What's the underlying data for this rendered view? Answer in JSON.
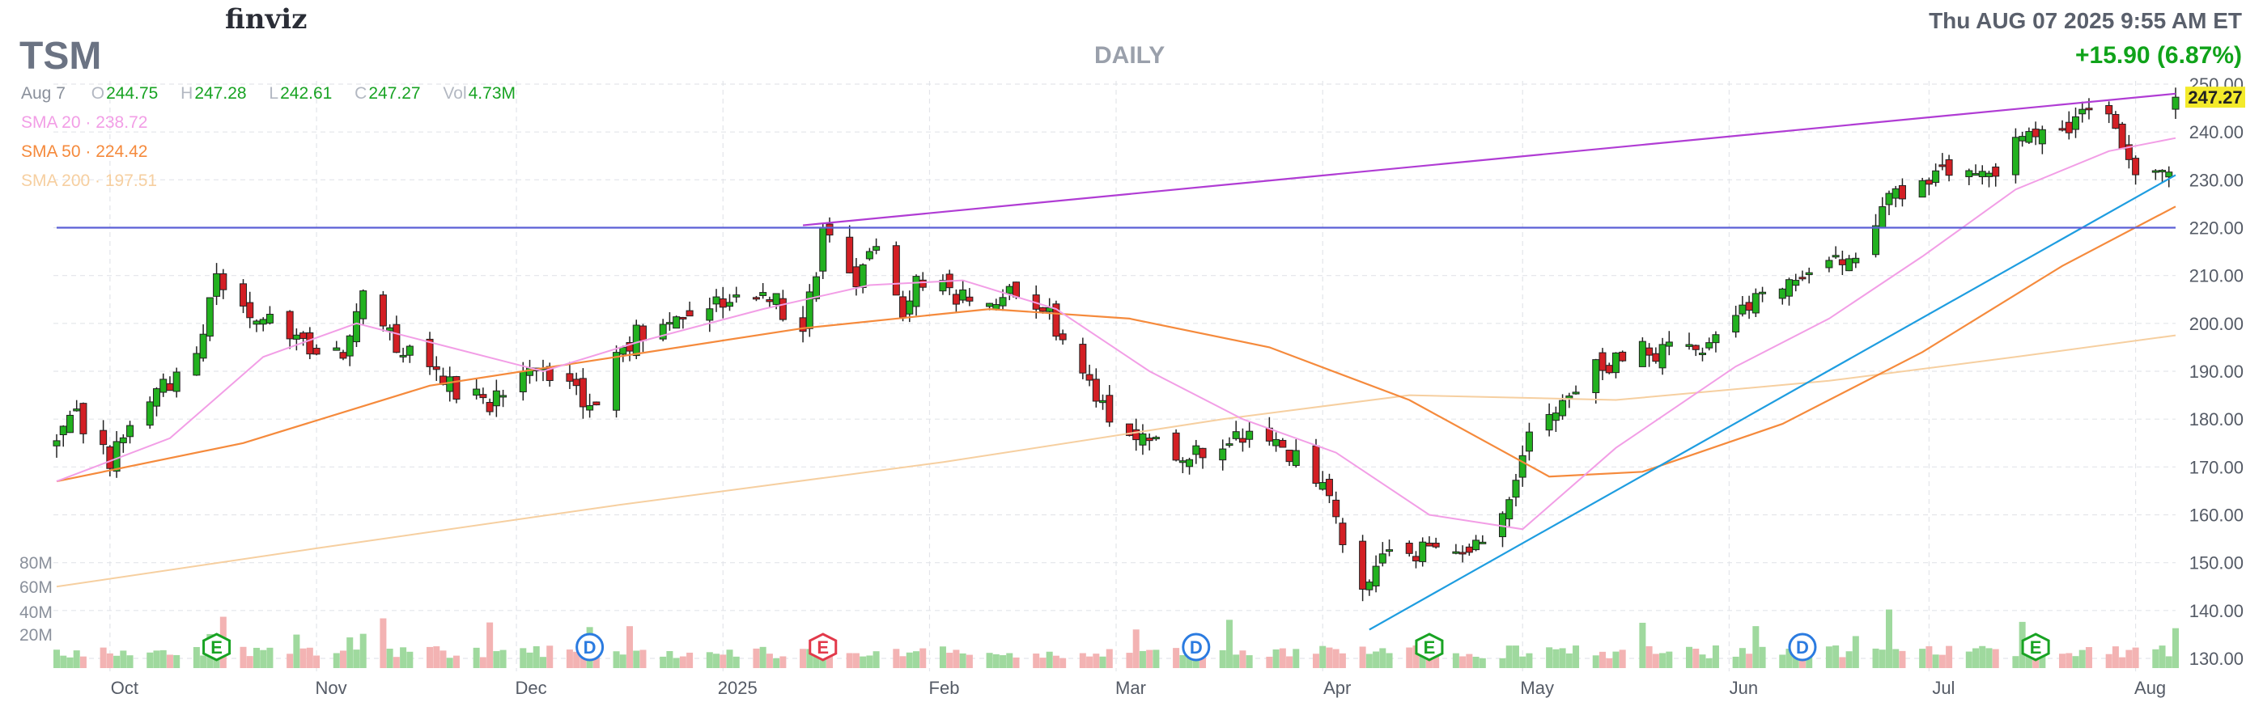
{
  "header": {
    "logo": "finviz",
    "ticker": "TSM",
    "period": "DAILY",
    "datetime": "Thu AUG 07 2025 9:55 AM ET",
    "change": "+15.90 (6.87%)",
    "quote_date": "Aug 7",
    "open_label": "O",
    "open": "244.75",
    "high_label": "H",
    "high": "247.28",
    "low_label": "L",
    "low": "242.61",
    "close_label": "C",
    "close": "247.27",
    "volume_label": "Vol",
    "volume": "4.73M",
    "sma20": "SMA 20 · 238.72",
    "sma50": "SMA 50 · 224.42",
    "sma200": "SMA 200 · 197.51"
  },
  "colors": {
    "up": "#22b11f",
    "down": "#d31f24",
    "vol_up": "#9fd99e",
    "vol_down": "#f3b3b3",
    "sma20": "#f29ee6",
    "sma50": "#f58a3c",
    "sma200": "#f6cfa0",
    "trend_top": "#b03cd4",
    "trend_up": "#1e9de0",
    "support": "#5b5fd6",
    "last_price_bg": "#f3ea2b",
    "earnings": "#18a323",
    "earnings_red": "#e2394a",
    "dividend": "#2b7be0"
  },
  "chart_data": {
    "type": "candlestick",
    "last_price": "247.27",
    "y_axis": {
      "min": 130,
      "max": 250,
      "ticks": [
        "130.00",
        "140.00",
        "150.00",
        "160.00",
        "170.00",
        "180.00",
        "190.00",
        "200.00",
        "210.00",
        "220.00",
        "230.00",
        "240.00",
        "250.00"
      ]
    },
    "volume_axis": {
      "ticks": [
        "20M",
        "40M",
        "60M",
        "80M"
      ]
    },
    "x_axis": {
      "start": "2024-09-23",
      "end": "2025-08-07",
      "labels": [
        {
          "date": "2024-10-01",
          "label": "Oct"
        },
        {
          "date": "2024-11-01",
          "label": "Nov"
        },
        {
          "date": "2024-12-01",
          "label": "Dec"
        },
        {
          "date": "2025-01-01",
          "label": "2025"
        },
        {
          "date": "2025-02-01",
          "label": "Feb"
        },
        {
          "date": "2025-03-01",
          "label": "Mar"
        },
        {
          "date": "2025-04-01",
          "label": "Apr"
        },
        {
          "date": "2025-05-01",
          "label": "May"
        },
        {
          "date": "2025-06-01",
          "label": "Jun"
        },
        {
          "date": "2025-07-01",
          "label": "Jul"
        },
        {
          "date": "2025-08-01",
          "label": "Aug"
        }
      ]
    },
    "close_path": [
      [
        "2024-09-23",
        175
      ],
      [
        "2024-09-26",
        180
      ],
      [
        "2024-10-01",
        172
      ],
      [
        "2024-10-08",
        185
      ],
      [
        "2024-10-14",
        192
      ],
      [
        "2024-10-17",
        210
      ],
      [
        "2024-10-22",
        202
      ],
      [
        "2024-10-29",
        197
      ],
      [
        "2024-11-05",
        193
      ],
      [
        "2024-11-08",
        209
      ],
      [
        "2024-11-13",
        196
      ],
      [
        "2024-11-20",
        187
      ],
      [
        "2024-11-27",
        184
      ],
      [
        "2024-12-03",
        193
      ],
      [
        "2024-12-09",
        187
      ],
      [
        "2024-12-12",
        182
      ],
      [
        "2024-12-17",
        195
      ],
      [
        "2024-12-23",
        202
      ],
      [
        "2024-12-31",
        205
      ],
      [
        "2025-01-07",
        206
      ],
      [
        "2025-01-10",
        203
      ],
      [
        "2025-01-13",
        200
      ],
      [
        "2025-01-16",
        218
      ],
      [
        "2025-01-21",
        210
      ],
      [
        "2025-01-24",
        215
      ],
      [
        "2025-01-28",
        203
      ],
      [
        "2025-01-31",
        210
      ],
      [
        "2025-02-07",
        204
      ],
      [
        "2025-02-12",
        206
      ],
      [
        "2025-02-19",
        202
      ],
      [
        "2025-02-26",
        185
      ],
      [
        "2025-03-04",
        175
      ],
      [
        "2025-03-10",
        173
      ],
      [
        "2025-03-17",
        175
      ],
      [
        "2025-03-24",
        177
      ],
      [
        "2025-03-28",
        172
      ],
      [
        "2025-04-02",
        163
      ],
      [
        "2025-04-07",
        143
      ],
      [
        "2025-04-10",
        152
      ],
      [
        "2025-04-16",
        152
      ],
      [
        "2025-04-22",
        150
      ],
      [
        "2025-04-28",
        162
      ],
      [
        "2025-05-02",
        176
      ],
      [
        "2025-05-12",
        190
      ],
      [
        "2025-05-19",
        194
      ],
      [
        "2025-05-28",
        196
      ],
      [
        "2025-06-04",
        205
      ],
      [
        "2025-06-10",
        210
      ],
      [
        "2025-06-16",
        212
      ],
      [
        "2025-06-20",
        212
      ],
      [
        "2025-06-25",
        226
      ],
      [
        "2025-07-02",
        230
      ],
      [
        "2025-07-07",
        233
      ],
      [
        "2025-07-10",
        232
      ],
      [
        "2025-07-17",
        240
      ],
      [
        "2025-07-22",
        242
      ],
      [
        "2025-07-28",
        243
      ],
      [
        "2025-08-01",
        232
      ],
      [
        "2025-08-06",
        231
      ],
      [
        "2025-08-07",
        247.27
      ]
    ],
    "sma20_path": [
      [
        "2024-09-23",
        167
      ],
      [
        "2024-10-10",
        176
      ],
      [
        "2024-10-24",
        193
      ],
      [
        "2024-11-07",
        200
      ],
      [
        "2024-11-21",
        195
      ],
      [
        "2024-12-05",
        190
      ],
      [
        "2024-12-19",
        196
      ],
      [
        "2025-01-07",
        203
      ],
      [
        "2025-01-23",
        208
      ],
      [
        "2025-02-06",
        209
      ],
      [
        "2025-02-20",
        203
      ],
      [
        "2025-03-06",
        190
      ],
      [
        "2025-03-20",
        180
      ],
      [
        "2025-04-03",
        173
      ],
      [
        "2025-04-17",
        160
      ],
      [
        "2025-05-01",
        157
      ],
      [
        "2025-05-15",
        174
      ],
      [
        "2025-06-02",
        191
      ],
      [
        "2025-06-16",
        201
      ],
      [
        "2025-06-30",
        214
      ],
      [
        "2025-07-14",
        228
      ],
      [
        "2025-07-28",
        236
      ],
      [
        "2025-08-07",
        238.72
      ]
    ],
    "sma50_path": [
      [
        "2024-09-23",
        167
      ],
      [
        "2024-10-21",
        175
      ],
      [
        "2024-11-18",
        187
      ],
      [
        "2024-12-16",
        193
      ],
      [
        "2025-01-13",
        199
      ],
      [
        "2025-02-10",
        203
      ],
      [
        "2025-03-03",
        201
      ],
      [
        "2025-03-24",
        195
      ],
      [
        "2025-04-14",
        184
      ],
      [
        "2025-05-05",
        168
      ],
      [
        "2025-05-19",
        169
      ],
      [
        "2025-06-09",
        179
      ],
      [
        "2025-06-30",
        194
      ],
      [
        "2025-07-21",
        212
      ],
      [
        "2025-08-07",
        224.42
      ]
    ],
    "sma200_path": [
      [
        "2024-09-23",
        145
      ],
      [
        "2024-11-01",
        153
      ],
      [
        "2024-12-16",
        162
      ],
      [
        "2025-02-03",
        171
      ],
      [
        "2025-03-17",
        180
      ],
      [
        "2025-04-14",
        185
      ],
      [
        "2025-05-15",
        184
      ],
      [
        "2025-06-16",
        188
      ],
      [
        "2025-07-14",
        193
      ],
      [
        "2025-08-07",
        197.51
      ]
    ],
    "trendlines": [
      {
        "name": "upper",
        "from": [
          "2025-01-13",
          220.5
        ],
        "to": [
          "2025-08-07",
          248
        ]
      },
      {
        "name": "rising",
        "from": [
          "2025-04-08",
          136
        ],
        "to": [
          "2025-08-07",
          231
        ]
      },
      {
        "name": "horizontal",
        "from": [
          "2024-09-23",
          220
        ],
        "to": [
          "2025-08-07",
          220
        ]
      }
    ],
    "event_markers": [
      {
        "date": "2024-10-17",
        "label": "E",
        "kind": "earnings"
      },
      {
        "date": "2024-12-12",
        "label": "D",
        "kind": "dividend"
      },
      {
        "date": "2025-01-16",
        "label": "E",
        "kind": "earnings-red"
      },
      {
        "date": "2025-03-13",
        "label": "D",
        "kind": "dividend"
      },
      {
        "date": "2025-04-17",
        "label": "E",
        "kind": "earnings"
      },
      {
        "date": "2025-06-12",
        "label": "D",
        "kind": "dividend"
      },
      {
        "date": "2025-07-17",
        "label": "E",
        "kind": "earnings"
      }
    ]
  }
}
